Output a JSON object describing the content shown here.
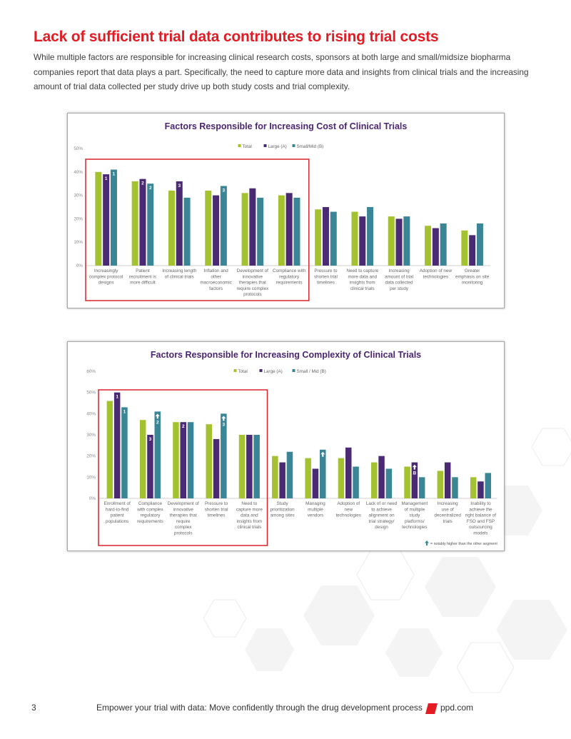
{
  "title": "Lack of sufficient trial data contributes to rising trial costs",
  "intro": "While multiple factors are responsible for increasing clinical research costs, sponsors at both large and small/midsize biopharma companies report that data plays a part. Specifically, the need to capture more data and insights from clinical trials and the increasing amount of trial data collected per study drive up both study costs and trial complexity.",
  "colors": {
    "title_red": "#e31b23",
    "total": "#a4c22f",
    "large": "#4a2a72",
    "small": "#3a8696",
    "chart_title": "#4b2573",
    "highlight_box": "#d8222a"
  },
  "chart_data": [
    {
      "type": "bar",
      "title": "Factors Responsible for Increasing Cost of Clinical Trials",
      "xlabel": "",
      "ylabel": "",
      "ylim": [
        0,
        50
      ],
      "yticks": [
        "0%",
        "10%",
        "20%",
        "30%",
        "40%",
        "50%"
      ],
      "grid": false,
      "legend": "top-center",
      "categories": [
        "Increasingly complex protocol designs",
        "Patient recruitment is more difficult",
        "Increasing length of clinical trials",
        "Inflation and other macroeconomic factors",
        "Development of innovative therapies that require complex protocols",
        "Compliance with regulatory requirements",
        "Pressure to shorten trial timelines",
        "Need to capture more data and insights from clinical trials",
        "Increasing amount of trial data collected per study",
        "Adoption of new technologies",
        "Greater emphasis on site monitoring"
      ],
      "category_lines": [
        [
          "Increasingly",
          "complex protocol",
          "designs"
        ],
        [
          "Patient",
          "recruitment is",
          "more difficult"
        ],
        [
          "Increasing length",
          "of clinical trials"
        ],
        [
          "Inflation and",
          "other",
          "macroeconomic",
          "factors"
        ],
        [
          "Development of",
          "innovative",
          "therapies that",
          "require complex",
          "protocols"
        ],
        [
          "Compliance with",
          "regulatory",
          "requirements"
        ],
        [
          "Pressure to",
          "shorten trial",
          "timelines"
        ],
        [
          "Need to capture",
          "more data and",
          "insights from",
          "clinical trials"
        ],
        [
          "Increasing",
          "amount of trial",
          "data collected",
          "per study"
        ],
        [
          "Adoption of new",
          "technologies"
        ],
        [
          "Greater",
          "emphasis on site",
          "monitoring"
        ]
      ],
      "series": [
        {
          "name": "Total",
          "values": [
            40,
            36,
            32,
            32,
            31,
            30,
            24,
            23,
            21,
            17,
            15
          ]
        },
        {
          "name": "Large (A)",
          "values": [
            39,
            37,
            36,
            30,
            33,
            31,
            25,
            21,
            20,
            16,
            13
          ]
        },
        {
          "name": "Small/Mid (B)",
          "values": [
            41,
            35,
            29,
            34,
            29,
            29,
            23,
            25,
            21,
            18,
            18
          ]
        }
      ],
      "rank_labels": [
        {
          "category": 0,
          "series": 1,
          "text": "1"
        },
        {
          "category": 0,
          "series": 2,
          "text": "1"
        },
        {
          "category": 1,
          "series": 1,
          "text": "2"
        },
        {
          "category": 1,
          "series": 2,
          "text": "2"
        },
        {
          "category": 2,
          "series": 1,
          "text": "3"
        },
        {
          "category": 3,
          "series": 2,
          "text": "3"
        }
      ],
      "highlight": {
        "from": 0,
        "to": 5
      }
    },
    {
      "type": "bar",
      "title": "Factors Responsible for Increasing Complexity of Clinical Trials",
      "xlabel": "",
      "ylabel": "",
      "ylim": [
        0,
        60
      ],
      "yticks": [
        "0%",
        "10%",
        "20%",
        "30%",
        "40%",
        "50%",
        "60%"
      ],
      "grid": false,
      "legend": "top-center",
      "categories": [
        "Enrollment of hard-to-find patient populations",
        "Compliance with complex regulatory requirements",
        "Development of innovative therapies that require complex protocols",
        "Pressure to shorten trial timelines",
        "Need to capture more data and insights from clinical trials",
        "Study prioritization among sites",
        "Managing multiple vendors",
        "Adoption of new technologies",
        "Lack of or need to achieve alignment on trial strategy/design",
        "Management of multiple study platforms/technologies",
        "Increasing use of decentralized trials",
        "Inability to achieve the right balance of FSO and FSP outsourcing models"
      ],
      "category_lines": [
        [
          "Enrollment of",
          "hard-to-find",
          "patient",
          "populations"
        ],
        [
          "Compliance",
          "with complex",
          "regulatory",
          "requirements"
        ],
        [
          "Development of",
          "innovative",
          "therapies that",
          "require",
          "complex",
          "protocols"
        ],
        [
          "Pressure to",
          "shorten trial",
          "timelines"
        ],
        [
          "Need to",
          "capture more",
          "data and",
          "insights from",
          "clinical trials"
        ],
        [
          "Study",
          "prioritization",
          "among sites"
        ],
        [
          "Managing",
          "multiple",
          "vendors"
        ],
        [
          "Adoption of",
          "new",
          "technologies"
        ],
        [
          "Lack of or need",
          "to achieve",
          "alignment on",
          "trial strategy/",
          "design"
        ],
        [
          "Management",
          "of multiple",
          "study",
          "platforms/",
          "technologies"
        ],
        [
          "Increasing",
          "use of",
          "decentralized",
          "trials"
        ],
        [
          "Inability to",
          "achieve the",
          "right balance of",
          "FSO and FSP",
          "outsourcing",
          "models"
        ]
      ],
      "series": [
        {
          "name": "Total",
          "values": [
            46,
            37,
            36,
            35,
            30,
            20,
            19,
            19,
            17,
            15,
            13,
            10
          ]
        },
        {
          "name": "Large (A)",
          "values": [
            50,
            30,
            36,
            28,
            30,
            17,
            14,
            24,
            20,
            17,
            17,
            8
          ]
        },
        {
          "name": "Small / Mid (B)",
          "values": [
            43,
            41,
            36,
            40,
            30,
            22,
            23,
            15,
            14,
            10,
            10,
            12
          ]
        }
      ],
      "rank_labels": [
        {
          "category": 0,
          "series": 1,
          "text": "1"
        },
        {
          "category": 0,
          "series": 2,
          "text": "1"
        },
        {
          "category": 1,
          "series": 1,
          "text": "3"
        },
        {
          "category": 1,
          "series": 2,
          "text": "2"
        },
        {
          "category": 2,
          "series": 1,
          "text": "2"
        },
        {
          "category": 3,
          "series": 2,
          "text": "3"
        },
        {
          "category": 9,
          "series": 1,
          "text": "B"
        }
      ],
      "arrows": [
        {
          "category": 1,
          "series": 2
        },
        {
          "category": 3,
          "series": 2
        },
        {
          "category": 6,
          "series": 2
        },
        {
          "category": 9,
          "series": 1
        }
      ],
      "note": "= notably higher than the other segment",
      "highlight": {
        "from": 0,
        "to": 4
      }
    }
  ],
  "footer": {
    "page": "3",
    "tagline": "Empower your trial with data: Move confidently through the drug development process",
    "site": "ppd.com"
  }
}
